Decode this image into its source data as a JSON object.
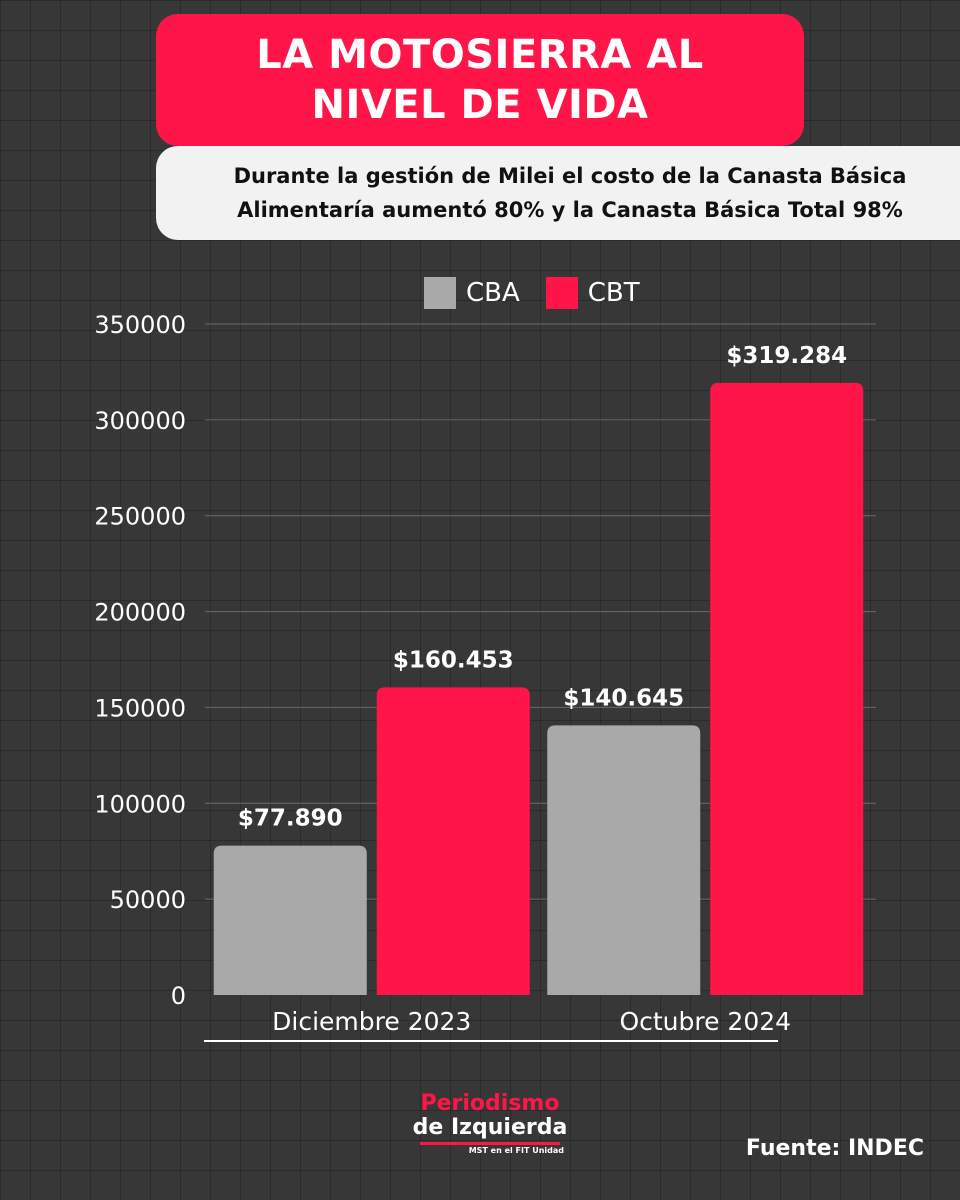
{
  "header": {
    "title_line1": "LA MOTOSIERRA AL",
    "title_line2": "NIVEL DE VIDA",
    "subtitle_line1": "Durante la gestión de Milei el costo de la Canasta Básica",
    "subtitle_line2": "Alimentaría aumentó 80% y la Canasta Básica Total 98%"
  },
  "chart_data": {
    "type": "bar",
    "categories": [
      "Diciembre 2023",
      "Octubre 2024"
    ],
    "series": [
      {
        "name": "CBA",
        "values": [
          77890,
          140645
        ],
        "labels": [
          "$77.890",
          "$140.645"
        ],
        "color": "#a9a9a9"
      },
      {
        "name": "CBT",
        "values": [
          160453,
          319284
        ],
        "labels": [
          "$160.453",
          "$319.284"
        ],
        "color": "#ff1547"
      }
    ],
    "ylim": [
      0,
      350000
    ],
    "yticks": [
      0,
      50000,
      100000,
      150000,
      200000,
      250000,
      300000,
      350000
    ],
    "ytick_labels": [
      "0",
      "50000",
      "100000",
      "150000",
      "200000",
      "250000",
      "300000",
      "350000"
    ],
    "grid": true,
    "legend": "top"
  },
  "footer": {
    "logo_line1": "Periodismo",
    "logo_line2": "de Izquierda",
    "logo_tagline": "MST en el FIT Unidad",
    "source": "Fuente: INDEC"
  }
}
